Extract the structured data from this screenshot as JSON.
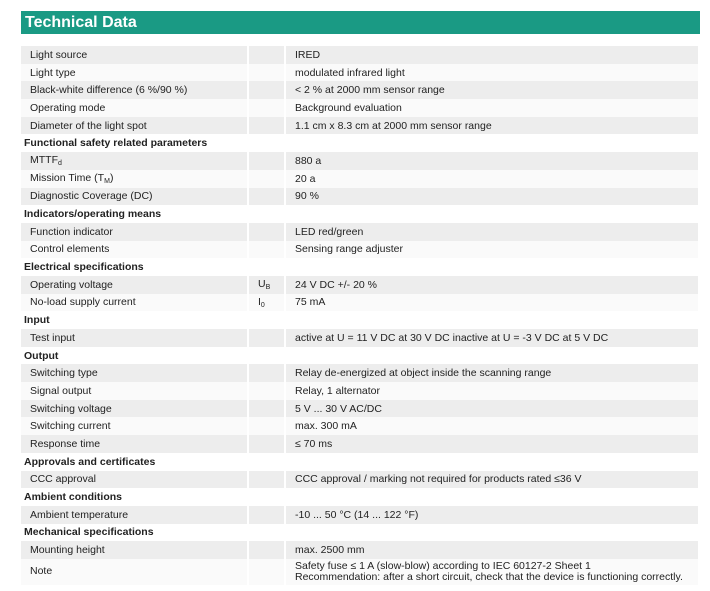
{
  "title": "Technical Data",
  "accent_color": "#1a9a84",
  "rows": [
    {
      "type": "row",
      "label": "Light source",
      "symbol": "",
      "value": "IRED"
    },
    {
      "type": "row",
      "label": "Light type",
      "symbol": "",
      "value": "modulated infrared light"
    },
    {
      "type": "row",
      "label": "Black-white difference (6 %/90 %)",
      "symbol": "",
      "value": "< 2  % at 2000 mm sensor range"
    },
    {
      "type": "row",
      "label": "Operating mode",
      "symbol": "",
      "value": "Background evaluation"
    },
    {
      "type": "row",
      "label": "Diameter of the light spot",
      "symbol": "",
      "value": "1.1 cm x 8.3 cm at 2000 mm sensor range"
    },
    {
      "type": "section",
      "label": "Functional safety related parameters"
    },
    {
      "type": "row",
      "label": "MTTF",
      "label_sub": "d",
      "symbol": "",
      "value": "880 a"
    },
    {
      "type": "row",
      "label": "Mission Time (T",
      "label_sub": "M",
      "label_suffix": ")",
      "symbol": "",
      "value": "20 a"
    },
    {
      "type": "row",
      "label": "Diagnostic Coverage (DC)",
      "symbol": "",
      "value": "90 %"
    },
    {
      "type": "section",
      "label": "Indicators/operating means"
    },
    {
      "type": "row",
      "label": "Function indicator",
      "symbol": "",
      "value": "LED red/green"
    },
    {
      "type": "row",
      "label": "Control elements",
      "symbol": "",
      "value": "Sensing range  adjuster"
    },
    {
      "type": "section",
      "label": "Electrical specifications"
    },
    {
      "type": "row",
      "label": "Operating voltage",
      "symbol": "U",
      "symbol_sub": "B",
      "value": "24 V DC +/- 20 %"
    },
    {
      "type": "row",
      "label": "No-load supply current",
      "symbol": "I",
      "symbol_sub": "0",
      "value": "75 mA"
    },
    {
      "type": "section",
      "label": "Input"
    },
    {
      "type": "row",
      "label": "Test input",
      "symbol": "",
      "value": "active at U = 11 V DC at 30 V DC inactive at U = -3 V DC at 5 V DC"
    },
    {
      "type": "section",
      "label": "Output"
    },
    {
      "type": "row",
      "label": "Switching type",
      "symbol": "",
      "value": "Relay de-energized at object inside the scanning range"
    },
    {
      "type": "row",
      "label": "Signal output",
      "symbol": "",
      "value": "Relay, 1 alternator"
    },
    {
      "type": "row",
      "label": "Switching voltage",
      "symbol": "",
      "value": "5 V ... 30 V AC/DC"
    },
    {
      "type": "row",
      "label": "Switching current",
      "symbol": "",
      "value": "max. 300 mA"
    },
    {
      "type": "row",
      "label": "Response time",
      "symbol": "",
      "value": "≤ 70 ms"
    },
    {
      "type": "section",
      "label": "Approvals and certificates"
    },
    {
      "type": "row",
      "label": "CCC approval",
      "symbol": "",
      "value": "CCC approval / marking not required for products rated ≤36 V"
    },
    {
      "type": "section",
      "label": "Ambient conditions"
    },
    {
      "type": "row",
      "label": "Ambient temperature",
      "symbol": "",
      "value": "-10 ... 50 °C (14 ... 122 °F)"
    },
    {
      "type": "section",
      "label": "Mechanical specifications"
    },
    {
      "type": "row",
      "label": "Mounting height",
      "symbol": "",
      "value": "max. 2500 mm"
    },
    {
      "type": "row",
      "label": "Note",
      "symbol": "",
      "value": "Safety fuse ≤ 1 A (slow-blow) according to IEC 60127-2 Sheet 1",
      "value2": "Recommendation: after a short circuit, check that the device is functioning correctly."
    }
  ]
}
